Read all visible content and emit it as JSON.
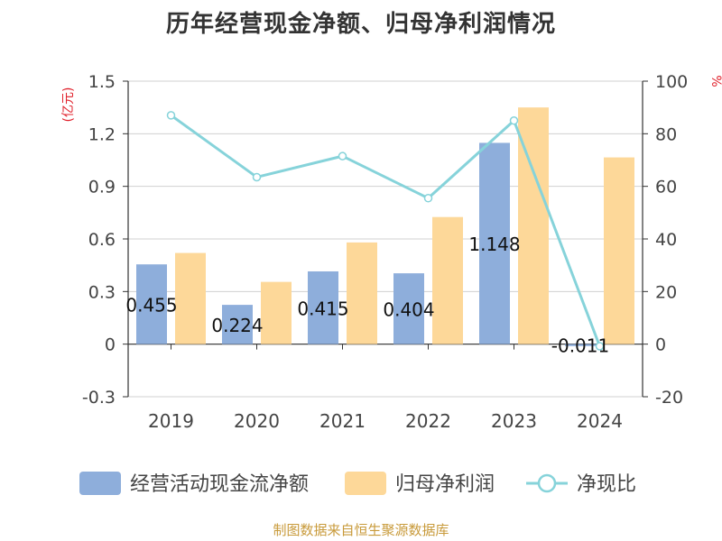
{
  "chart_data": {
    "type": "bar+line",
    "title": "历年经营现金净额、归母净利润情况",
    "categories": [
      "2019",
      "2020",
      "2021",
      "2022",
      "2023",
      "2024"
    ],
    "y_left": {
      "unit_label": "(亿元)",
      "ticks": [
        "-0.3",
        "0",
        "0.3",
        "0.6",
        "0.9",
        "1.2",
        "1.5"
      ],
      "ylim": [
        -0.3,
        1.5
      ]
    },
    "y_right": {
      "unit_label": "%",
      "ticks": [
        "-20",
        "0",
        "20",
        "40",
        "60",
        "80",
        "100"
      ],
      "ylim": [
        -20,
        100
      ]
    },
    "series": [
      {
        "name": "经营活动现金流净额",
        "kind": "bar",
        "axis": "left",
        "color": "#8eaedb",
        "values": [
          0.455,
          0.224,
          0.415,
          0.404,
          1.148,
          -0.011
        ],
        "labels": [
          "0.455",
          "0.224",
          "0.415",
          "0.404",
          "1.148",
          "-0.011"
        ]
      },
      {
        "name": "归母净利润",
        "kind": "bar",
        "axis": "left",
        "color": "#fdd899",
        "values": [
          0.52,
          0.355,
          0.58,
          0.725,
          1.35,
          1.065
        ]
      },
      {
        "name": "净现比",
        "kind": "line",
        "axis": "right",
        "color": "#86d3da",
        "values": [
          87,
          63.5,
          71.5,
          55.5,
          85,
          -0.8
        ]
      }
    ],
    "grid": true,
    "legend_position": "bottom",
    "label_color": "#e0202b"
  },
  "source": {
    "text": "制图数据来自恒生聚源数据库",
    "color": "#c89a3a"
  }
}
